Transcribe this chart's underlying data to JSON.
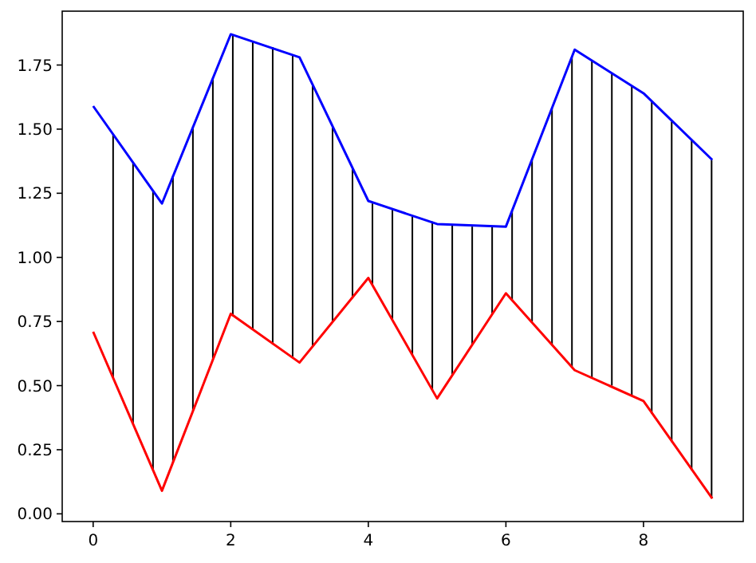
{
  "chart_data": {
    "type": "line",
    "xlim": [
      -0.45,
      9.45
    ],
    "ylim": [
      -0.03,
      1.96
    ],
    "xticks": [
      0,
      2,
      4,
      6,
      8
    ],
    "yticks": [
      {
        "value": 0,
        "label": "0.00"
      },
      {
        "value": 0.25,
        "label": "0.25"
      },
      {
        "value": 0.5,
        "label": "0.50"
      },
      {
        "value": 0.75,
        "label": "0.75"
      },
      {
        "value": 1,
        "label": "1.00"
      },
      {
        "value": 1.25,
        "label": "1.25"
      },
      {
        "value": 1.5,
        "label": "1.50"
      },
      {
        "value": 1.75,
        "label": "1.75"
      }
    ],
    "grid": false,
    "series": [
      {
        "type": "bar",
        "color": "#000000",
        "x": [
          0.29,
          0.58,
          0.87,
          1.16,
          1.45,
          1.74,
          2.03,
          2.32,
          2.61,
          2.9,
          3.19,
          3.48,
          3.77,
          4.06,
          4.35,
          4.64,
          4.93,
          5.22,
          5.51,
          5.8,
          6.09,
          6.38,
          6.67,
          6.96,
          7.25,
          7.54,
          7.83,
          8.12,
          8.41,
          8.7,
          8.99
        ],
        "base": [
          0.53,
          0.35,
          0.17,
          0.2,
          0.4,
          0.6,
          0.77,
          0.72,
          0.66,
          0.61,
          0.65,
          0.75,
          0.84,
          0.89,
          0.76,
          0.62,
          0.48,
          0.54,
          0.66,
          0.78,
          0.83,
          0.75,
          0.66,
          0.57,
          0.53,
          0.5,
          0.46,
          0.39,
          0.28,
          0.17,
          0.06
        ],
        "values": [
          0.95,
          1.02,
          1.09,
          1.12,
          1.11,
          1.1,
          1.1,
          1.12,
          1.16,
          1.18,
          1.02,
          0.76,
          0.51,
          0.32,
          0.43,
          0.54,
          0.66,
          0.59,
          0.46,
          0.34,
          0.35,
          0.63,
          0.92,
          1.21,
          1.24,
          1.22,
          1.21,
          1.22,
          1.25,
          1.29,
          1.32
        ]
      },
      {
        "color": "#0000ff",
        "x": [
          0,
          1,
          2,
          3,
          4,
          5,
          6,
          7,
          8,
          9
        ],
        "values": [
          1.59,
          1.21,
          1.87,
          1.78,
          1.22,
          1.13,
          1.12,
          1.81,
          1.64,
          1.38
        ]
      },
      {
        "color": "#ff0000",
        "x": [
          0,
          1,
          2,
          3,
          4,
          5,
          6,
          7,
          8,
          9
        ],
        "values": [
          0.71,
          0.09,
          0.78,
          0.59,
          0.92,
          0.45,
          0.86,
          0.56,
          0.44,
          0.06
        ]
      }
    ]
  }
}
